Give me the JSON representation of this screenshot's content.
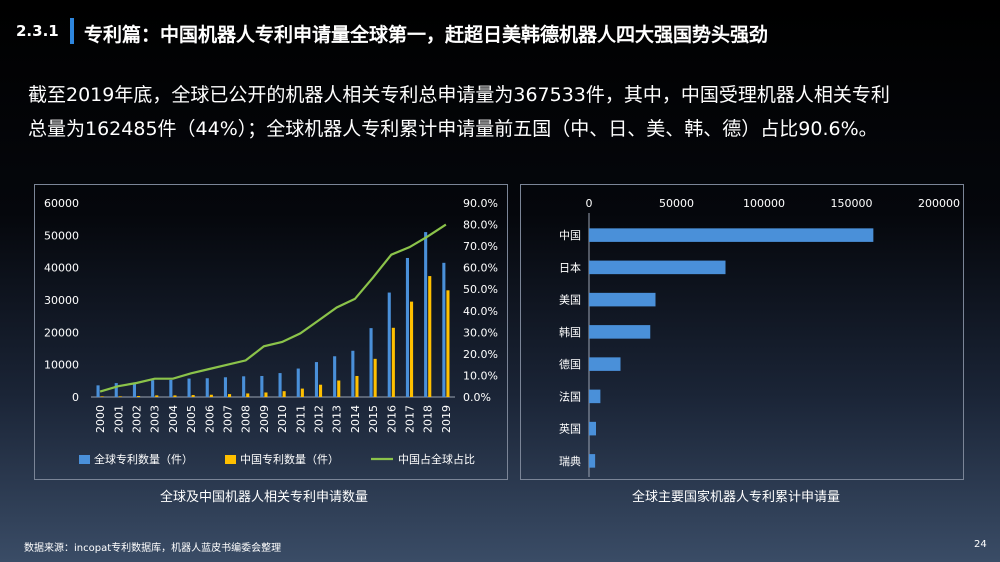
{
  "header": {
    "section_number": "2.3.1",
    "title": "专利篇：中国机器人专利申请量全球第一，赶超日美韩德机器人四大强国势头强劲"
  },
  "intro": {
    "line1": "截至2019年底，全球已公开的机器人相关专利总申请量为367533件，其中，中国受理机器人相关专利",
    "line2": "总量为162485件（44%）；全球机器人专利累计申请量前五国（中、日、美、韩、德）占比90.6%。"
  },
  "colors": {
    "global_bar": "#4a90d9",
    "china_bar": "#ffc000",
    "share_line": "#8bc34a",
    "country_bar": "#4a90d9"
  },
  "chart_data": [
    {
      "type": "bar",
      "caption": "全球及中国机器人相关专利申请数量",
      "categories": [
        "2000",
        "2001",
        "2002",
        "2003",
        "2004",
        "2005",
        "2006",
        "2007",
        "2008",
        "2009",
        "2010",
        "2011",
        "2012",
        "2013",
        "2014",
        "2015",
        "2016",
        "2017",
        "2018",
        "2019"
      ],
      "series": [
        {
          "name": "全球专利数量（件）",
          "type": "bar",
          "axis": "left",
          "values": [
            3600,
            4300,
            4500,
            5200,
            5300,
            5700,
            5800,
            6100,
            6400,
            6500,
            7400,
            8800,
            10800,
            12600,
            14300,
            21300,
            32300,
            43000,
            51000,
            41500
          ]
        },
        {
          "name": "中国专利数量（件）",
          "type": "bar",
          "axis": "left",
          "values": [
            200,
            200,
            300,
            500,
            500,
            600,
            700,
            900,
            1100,
            1400,
            1800,
            2600,
            3800,
            5100,
            6500,
            11800,
            21400,
            29500,
            37400,
            33000
          ]
        },
        {
          "name": "中国占全球占比",
          "type": "line",
          "axis": "right",
          "values": [
            2.5,
            5,
            6.5,
            8.5,
            8.5,
            11,
            13,
            15,
            17,
            23.5,
            25.5,
            29.5,
            35.5,
            41.5,
            45.5,
            55.5,
            66,
            69.5,
            74.5,
            80
          ]
        }
      ],
      "ylim": [
        0,
        60000
      ],
      "yticks": [
        "0",
        "10000",
        "20000",
        "30000",
        "40000",
        "50000",
        "60000"
      ],
      "y2lim": [
        0,
        90
      ],
      "y2ticks": [
        "0.0%",
        "10.0%",
        "20.0%",
        "30.0%",
        "40.0%",
        "50.0%",
        "60.0%",
        "70.0%",
        "80.0%",
        "90.0%"
      ],
      "legend_position": "bottom"
    },
    {
      "type": "bar",
      "orientation": "horizontal",
      "caption": "全球主要国家机器人专利累计申请量",
      "categories": [
        "中国",
        "日本",
        "美国",
        "韩国",
        "德国",
        "法国",
        "英国",
        "瑞典"
      ],
      "values": [
        162485,
        78000,
        38000,
        35000,
        18000,
        6500,
        4000,
        3500
      ],
      "xlim": [
        0,
        200000
      ],
      "xticks": [
        "0",
        "50000",
        "100000",
        "150000",
        "200000"
      ],
      "axis_position": "top"
    }
  ],
  "footer": {
    "source": "数据来源：incopat专利数据库，机器人蓝皮书编委会整理",
    "page_number": "24"
  }
}
